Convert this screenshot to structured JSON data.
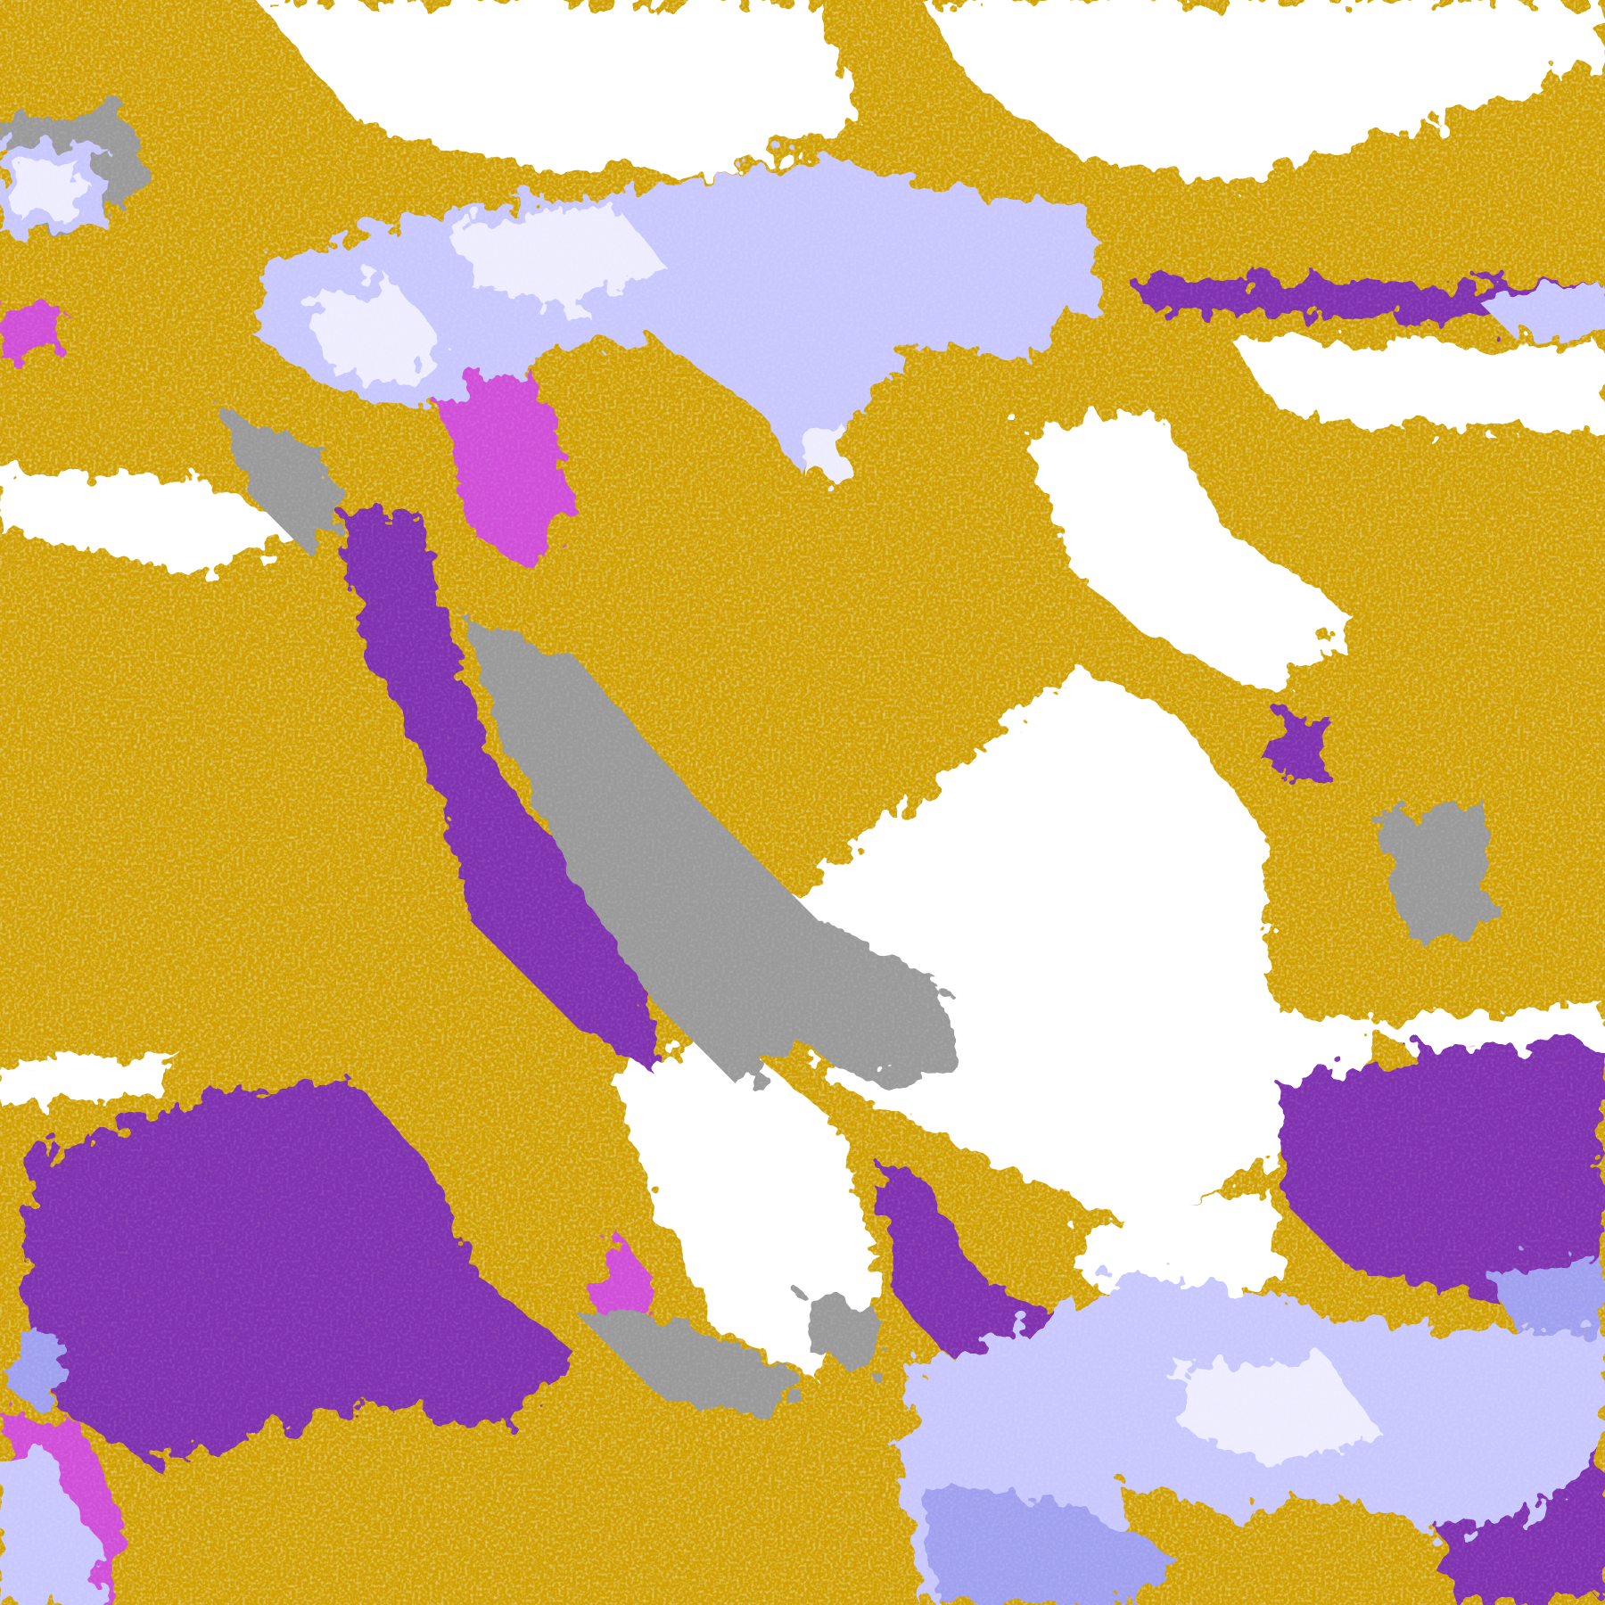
{
  "image": {
    "kind": "false-color satellite imagery",
    "palette": {
      "gold": "#d0a000",
      "dark_gold": "#b88800",
      "white": "#ffffff",
      "purple": "#8030b0",
      "magenta": "#d050d8",
      "gray": "#9a9a9a",
      "light_lavender": "#e8e8ff",
      "lavender": "#c8c8ff",
      "periwinkle": "#a0a0f0"
    }
  }
}
